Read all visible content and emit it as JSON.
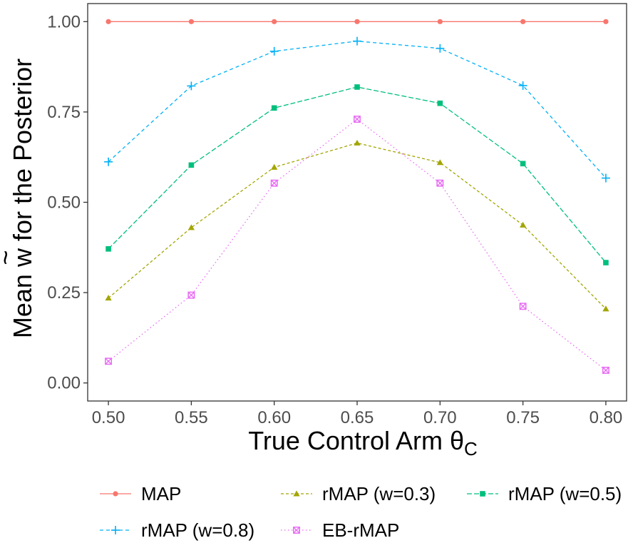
{
  "chart_data": {
    "type": "line",
    "title": "",
    "xlabel": "True Control Arm θC",
    "xlabel_main": "True Control Arm θ",
    "xlabel_sub": "C",
    "ylabel": "Mean w̃ for the Posterior",
    "ylabel_pre": "Mean ",
    "ylabel_w": "w",
    "ylabel_tilde": "~",
    "ylabel_post": " for the Posterior",
    "x": [
      0.5,
      0.55,
      0.6,
      0.65,
      0.7,
      0.75,
      0.8
    ],
    "x_tick_labels": [
      "0.50",
      "0.55",
      "0.60",
      "0.65",
      "0.70",
      "0.75",
      "0.80"
    ],
    "y_ticks": [
      0.0,
      0.25,
      0.5,
      0.75,
      1.0
    ],
    "y_tick_labels": [
      "0.00",
      "0.25",
      "0.50",
      "0.75",
      "1.00"
    ],
    "xlim": [
      0.4875,
      0.8125
    ],
    "ylim": [
      -0.05,
      1.05
    ],
    "grid": false,
    "legend_position": "bottom",
    "series": [
      {
        "name": "MAP",
        "color": "#F8766D",
        "marker": "circle",
        "dash": "",
        "values": [
          1.0,
          1.0,
          1.0,
          1.0,
          1.0,
          1.0,
          1.0
        ]
      },
      {
        "name": "rMAP (w=0.3)",
        "color": "#A3A500",
        "marker": "triangle",
        "dash": "4,3",
        "values": [
          0.235,
          0.43,
          0.597,
          0.664,
          0.61,
          0.437,
          0.205
        ]
      },
      {
        "name": "rMAP (w=0.5)",
        "color": "#00BF7D",
        "marker": "square",
        "dash": "7,3",
        "values": [
          0.371,
          0.603,
          0.761,
          0.819,
          0.774,
          0.607,
          0.333
        ]
      },
      {
        "name": "rMAP (w=0.8)",
        "color": "#00B0F6",
        "marker": "plus",
        "dash": "5,4",
        "values": [
          0.612,
          0.822,
          0.918,
          0.946,
          0.926,
          0.823,
          0.567
        ]
      },
      {
        "name": "EB-rMAP",
        "color": "#E76BF3",
        "marker": "boxx",
        "dash": "1.5,3.5",
        "values": [
          0.06,
          0.243,
          0.553,
          0.73,
          0.553,
          0.212,
          0.035
        ]
      }
    ]
  }
}
